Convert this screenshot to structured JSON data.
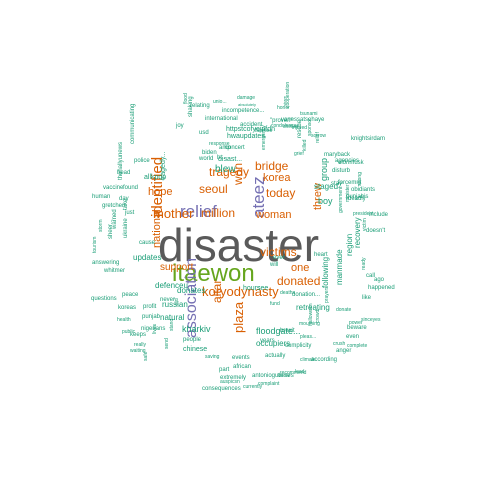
{
  "colors": {
    "gray": "#5a5a5a",
    "green": "#66a61e",
    "orange": "#d95f02",
    "purple": "#7570b3",
    "teal": "#1b9e77"
  },
  "words": [
    {
      "text": "disaster",
      "color": "gray"
    },
    {
      "text": "itaewon",
      "color": "green"
    },
    {
      "text": "association",
      "color": "purple"
    },
    {
      "text": "relief",
      "color": "purple"
    },
    {
      "text": "ateez",
      "color": "purple"
    },
    {
      "text": "koryodynasty",
      "color": "orange"
    },
    {
      "text": "identified",
      "color": "orange"
    },
    {
      "text": "plaza",
      "color": "orange"
    },
    {
      "text": "mother",
      "color": "orange"
    },
    {
      "text": "victims",
      "color": "orange"
    },
    {
      "text": "million",
      "color": "orange"
    },
    {
      "text": "woman",
      "color": "orange"
    },
    {
      "text": "seoul",
      "color": "orange"
    },
    {
      "text": "tragedy",
      "color": "orange"
    },
    {
      "text": "bridge",
      "color": "orange"
    },
    {
      "text": "donated",
      "color": "orange"
    },
    {
      "text": "threw",
      "color": "orange"
    },
    {
      "text": "today",
      "color": "orange"
    },
    {
      "text": "won",
      "color": "orange"
    },
    {
      "text": "national",
      "color": "orange"
    },
    {
      "text": "altar",
      "color": "orange"
    },
    {
      "text": "korea",
      "color": "orange"
    },
    {
      "text": "hope",
      "color": "orange"
    },
    {
      "text": "support",
      "color": "orange"
    },
    {
      "text": "one",
      "color": "orange"
    },
    {
      "text": "blew",
      "color": "teal"
    },
    {
      "text": "boy",
      "color": "teal"
    },
    {
      "text": "group",
      "color": "teal"
    },
    {
      "text": "following",
      "color": "teal"
    },
    {
      "text": "manmade",
      "color": "teal"
    },
    {
      "text": "region",
      "color": "teal"
    },
    {
      "text": "staged",
      "color": "teal"
    },
    {
      "text": "donates",
      "color": "teal"
    },
    {
      "text": "kharkiv",
      "color": "teal"
    },
    {
      "text": "floodgate...",
      "color": "teal"
    },
    {
      "text": "retreating",
      "color": "teal"
    },
    {
      "text": "natural",
      "color": "teal"
    },
    {
      "text": "russian",
      "color": "teal"
    },
    {
      "text": "defenceu",
      "color": "teal"
    },
    {
      "text": "occupiers",
      "color": "teal"
    },
    {
      "text": "updates",
      "color": "teal"
    },
    {
      "text": "recovery",
      "color": "teal"
    },
    {
      "text": "hours",
      "color": "teal"
    },
    {
      "text": "see",
      "color": "teal"
    },
    {
      "text": "will",
      "color": "teal"
    },
    {
      "text": "donation...",
      "color": "teal"
    },
    {
      "text": "events",
      "color": "teal"
    },
    {
      "text": "actually",
      "color": "teal"
    },
    {
      "text": "chinese",
      "color": "teal"
    },
    {
      "text": "people",
      "color": "teal"
    },
    {
      "text": "nigerians",
      "color": "teal"
    },
    {
      "text": "punjab",
      "color": "teal"
    },
    {
      "text": "koreas",
      "color": "teal"
    },
    {
      "text": "profit",
      "color": "teal"
    },
    {
      "text": "questions",
      "color": "teal"
    },
    {
      "text": "peace",
      "color": "teal"
    },
    {
      "text": "answering",
      "color": "teal"
    },
    {
      "text": "whitmer",
      "color": "teal"
    },
    {
      "text": "vaccine",
      "color": "teal"
    },
    {
      "text": "human",
      "color": "teal"
    },
    {
      "text": "day",
      "color": "teal"
    },
    {
      "text": "gretchen",
      "color": "teal"
    },
    {
      "text": "police",
      "color": "teal"
    },
    {
      "text": "allkpop",
      "color": "teal"
    },
    {
      "text": "hwaupdates",
      "color": "teal"
    },
    {
      "text": "httpstcofyejnfdn",
      "color": "teal"
    },
    {
      "text": "international",
      "color": "teal"
    },
    {
      "text": "incompetence...",
      "color": "teal"
    },
    {
      "text": "relating",
      "color": "teal"
    },
    {
      "text": "vanessatsehaye",
      "color": "teal"
    },
    {
      "text": "accident",
      "color": "teal"
    },
    {
      "text": "concert",
      "color": "teal"
    },
    {
      "text": "tsunami",
      "color": "teal"
    },
    {
      "text": "maryback",
      "color": "teal"
    },
    {
      "text": "elonmusk",
      "color": "teal"
    },
    {
      "text": "knightsirdam",
      "color": "teal"
    },
    {
      "text": "agencies",
      "color": "teal"
    },
    {
      "text": "disturb",
      "color": "teal"
    },
    {
      "text": "obidiants",
      "color": "teal"
    },
    {
      "text": "deadly",
      "color": "teal"
    },
    {
      "text": "punjabis",
      "color": "teal"
    },
    {
      "text": "include",
      "color": "teal"
    },
    {
      "text": "doesn't",
      "color": "teal"
    },
    {
      "text": "happened",
      "color": "teal"
    },
    {
      "text": "ago",
      "color": "teal"
    },
    {
      "text": "like",
      "color": "teal"
    },
    {
      "text": "call",
      "color": "teal"
    },
    {
      "text": "beware",
      "color": "teal"
    },
    {
      "text": "power",
      "color": "teal"
    },
    {
      "text": "complete",
      "color": "teal"
    },
    {
      "text": "even",
      "color": "teal"
    },
    {
      "text": "anger",
      "color": "teal"
    },
    {
      "text": "according",
      "color": "teal"
    },
    {
      "text": "complicity",
      "color": "teal"
    },
    {
      "text": "brexit",
      "color": "teal"
    },
    {
      "text": "years",
      "color": "teal"
    },
    {
      "text": "part",
      "color": "teal"
    },
    {
      "text": "extremely",
      "color": "teal"
    },
    {
      "text": "consequences",
      "color": "teal"
    },
    {
      "text": "african",
      "color": "teal"
    },
    {
      "text": "antonioguterres",
      "color": "teal"
    },
    {
      "text": "currently",
      "color": "teal"
    },
    {
      "text": "auspicsn",
      "color": "teal"
    },
    {
      "text": "complaint",
      "color": "teal"
    },
    {
      "text": "recommend",
      "color": "teal"
    },
    {
      "text": "never",
      "color": "teal"
    },
    {
      "text": "keeps",
      "color": "teal"
    },
    {
      "text": "health",
      "color": "teal"
    },
    {
      "text": "public",
      "color": "teal"
    },
    {
      "text": "really",
      "color": "teal"
    },
    {
      "text": "waiting",
      "color": "teal"
    },
    {
      "text": "disast...",
      "color": "teal"
    },
    {
      "text": "\"proven\"",
      "color": "teal"
    },
    {
      "text": "biden",
      "color": "teal"
    },
    {
      "text": "usd",
      "color": "teal"
    },
    {
      "text": "amp",
      "color": "teal"
    },
    {
      "text": "ht...",
      "color": "teal"
    },
    {
      "text": "tragedy...",
      "color": "teal"
    },
    {
      "text": "joy",
      "color": "teal"
    },
    {
      "text": "just",
      "color": "teal"
    },
    {
      "text": "take",
      "color": "teal"
    },
    {
      "text": "head",
      "color": "teal"
    },
    {
      "text": "found",
      "color": "teal"
    },
    {
      "text": "heart",
      "color": "teal"
    },
    {
      "text": "know",
      "color": "teal"
    },
    {
      "text": "ever",
      "color": "teal"
    },
    {
      "text": "cause",
      "color": "teal"
    },
    {
      "text": "thehallyunews",
      "color": "teal"
    },
    {
      "text": "communicating",
      "color": "teal"
    },
    {
      "text": "cooperation",
      "color": "teal"
    },
    {
      "text": "ukraine",
      "color": "teal"
    },
    {
      "text": "rescue",
      "color": "teal"
    },
    {
      "text": "stay",
      "color": "teal"
    },
    {
      "text": "forcemrjt",
      "color": "teal"
    },
    {
      "text": "world",
      "color": "teal"
    },
    {
      "text": "unio...",
      "color": "teal"
    },
    {
      "text": "killed",
      "color": "teal"
    },
    {
      "text": "lead",
      "color": "teal"
    },
    {
      "text": "sinceyes",
      "color": "teal"
    },
    {
      "text": "pleas...",
      "color": "teal"
    },
    {
      "text": "sheer...",
      "color": "teal"
    },
    {
      "text": "warned",
      "color": "teal"
    },
    {
      "text": "tourism",
      "color": "teal"
    },
    {
      "text": "storm",
      "color": "teal"
    },
    {
      "text": "flood",
      "color": "teal"
    },
    {
      "text": "shaking",
      "color": "teal"
    },
    {
      "text": "sponsor",
      "color": "teal"
    },
    {
      "text": "shelter",
      "color": "teal"
    },
    {
      "text": "share",
      "color": "teal"
    },
    {
      "text": "absolutely",
      "color": "teal"
    },
    {
      "text": "relief",
      "color": "teal"
    },
    {
      "text": "sorrow",
      "color": "teal"
    },
    {
      "text": "grief",
      "color": "teal"
    },
    {
      "text": "strong",
      "color": "teal"
    },
    {
      "text": "ready",
      "color": "teal"
    },
    {
      "text": "victim",
      "color": "teal"
    },
    {
      "text": "honor",
      "color": "teal"
    },
    {
      "text": "damage",
      "color": "teal"
    },
    {
      "text": "safe",
      "color": "teal"
    },
    {
      "text": "lives",
      "color": "teal"
    },
    {
      "text": "send",
      "color": "teal"
    },
    {
      "text": "stand",
      "color": "teal"
    },
    {
      "text": "saving",
      "color": "teal"
    },
    {
      "text": "climate",
      "color": "teal"
    },
    {
      "text": "aid",
      "color": "teal"
    },
    {
      "text": "deaths",
      "color": "teal"
    },
    {
      "text": "fund",
      "color": "teal"
    },
    {
      "text": "donate",
      "color": "teal"
    },
    {
      "text": "crowd",
      "color": "teal"
    },
    {
      "text": "crush",
      "color": "teal"
    },
    {
      "text": "halloween",
      "color": "teal"
    },
    {
      "text": "mourning",
      "color": "teal"
    },
    {
      "text": "prayers",
      "color": "teal"
    },
    {
      "text": "condolences",
      "color": "teal"
    },
    {
      "text": "families",
      "color": "teal"
    },
    {
      "text": "injured",
      "color": "teal"
    },
    {
      "text": "emergency",
      "color": "teal"
    },
    {
      "text": "response",
      "color": "teal"
    },
    {
      "text": "government",
      "color": "teal"
    },
    {
      "text": "minister",
      "color": "teal"
    },
    {
      "text": "president",
      "color": "teal"
    }
  ]
}
